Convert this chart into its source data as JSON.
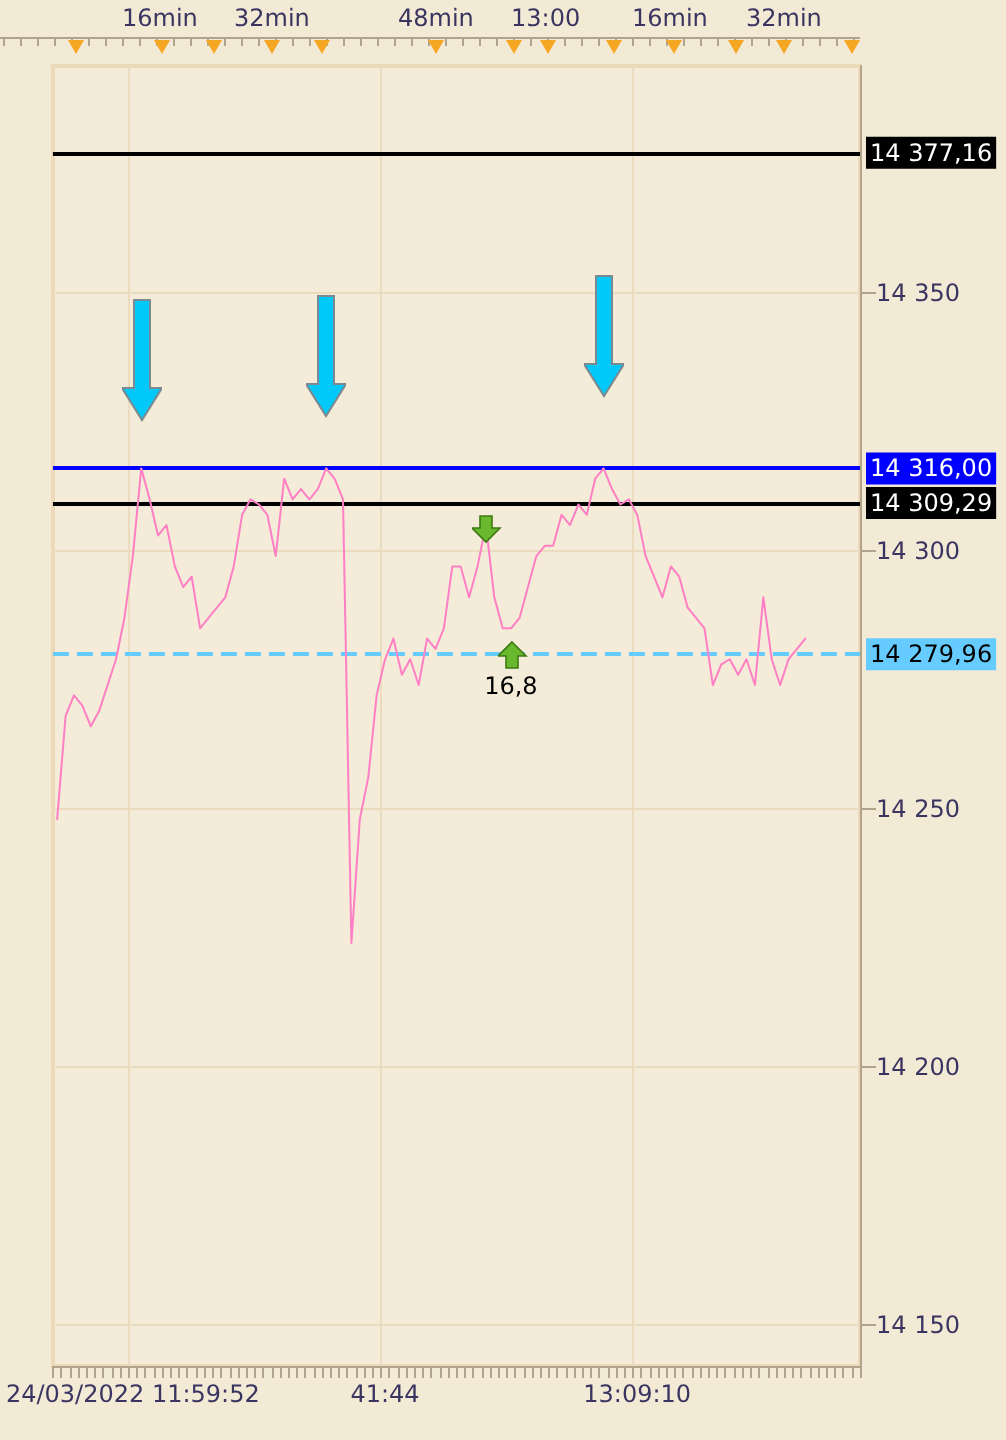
{
  "chart_data": {
    "type": "line",
    "categories": [
      null,
      null,
      null,
      null,
      null,
      null,
      null,
      null,
      null,
      "24/03/2022 11:59:52",
      null,
      null,
      null,
      null,
      null,
      null,
      null,
      null,
      null,
      null,
      null,
      null,
      null,
      null,
      null,
      null,
      null,
      null,
      null,
      null,
      null,
      null,
      null,
      null,
      null,
      null,
      null,
      null,
      null,
      "41:44",
      null,
      null,
      null,
      null,
      null,
      null,
      null,
      null,
      null,
      null,
      null,
      null,
      null,
      null,
      null,
      null,
      null,
      null,
      null,
      null,
      null,
      null,
      null,
      null,
      null,
      null,
      null,
      null,
      null,
      "13:09:10",
      null,
      null,
      null,
      null,
      null,
      null,
      null,
      null,
      null,
      null,
      null,
      null,
      null,
      null,
      null,
      null,
      null,
      null,
      null,
      null,
      null,
      null,
      null,
      null,
      null,
      null
    ],
    "values": [
      14248,
      14268,
      14272,
      14270,
      14266,
      14269,
      14274,
      14279,
      14287,
      14299,
      14316,
      14310,
      14303,
      14305,
      14297,
      14293,
      14295,
      14285,
      14287,
      14289,
      14291,
      14297,
      14307,
      14310,
      14309,
      14307,
      14299,
      14314,
      14310,
      14312,
      14310,
      14312,
      14316,
      14314,
      14310,
      14224,
      14248,
      14256,
      14272,
      14279,
      14283,
      14276,
      14279,
      14274,
      14283,
      14281,
      14285,
      14297,
      14297,
      14291,
      14297,
      14305,
      14291,
      14285,
      14285,
      14287,
      14293,
      14299,
      14301,
      14301,
      14307,
      14305,
      14309,
      14307,
      14314,
      14316,
      14312,
      14309,
      14310,
      14307,
      14299,
      14295,
      14291,
      14297,
      14295,
      14289,
      14287,
      14285,
      14274,
      14278,
      14279,
      14276,
      14279,
      14274,
      14291,
      14279,
      14274,
      14279,
      14281,
      14283,
      null,
      null,
      null,
      null,
      null,
      null
    ],
    "color": "#ff7fc4",
    "marker": "none",
    "ylim": [
      14142,
      14394
    ],
    "yticks": [
      {
        "value": 14150,
        "label": "14 150"
      },
      {
        "value": 14200,
        "label": "14 200"
      },
      {
        "value": 14250,
        "label": "14 250"
      },
      {
        "value": 14300,
        "label": "14 300"
      },
      {
        "value": 14350,
        "label": "14 350"
      }
    ],
    "grid": true,
    "ref_lines": [
      {
        "axis": "y",
        "value": 14377.16,
        "label": "14 377,16",
        "color": "#000000",
        "line_style": "solid"
      },
      {
        "axis": "y",
        "value": 14316.0,
        "label": "14 316,00",
        "color": "#0000ff",
        "line_style": "solid"
      },
      {
        "axis": "y",
        "value": 14309.29,
        "label": "14 309,29",
        "color": "#000000",
        "line_style": "solid"
      },
      {
        "axis": "y",
        "value": 14279.96,
        "label": "14 279,96",
        "color": "#66ccff",
        "line_style": "dashed"
      }
    ],
    "annotations": [
      "16min",
      "32min",
      "48min",
      "13:00",
      "16min",
      "32min",
      "16,8"
    ]
  }
}
